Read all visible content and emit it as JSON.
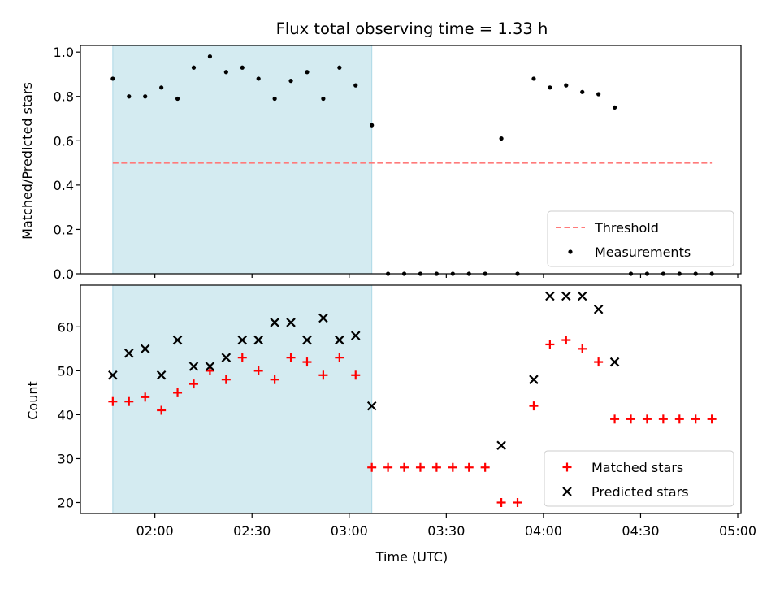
{
  "chart_data": {
    "type": "scatter",
    "title": "Flux total observing time = 1.33 h",
    "xlabel": "Time (UTC)",
    "x_unit": "time of day (UTC)",
    "x_ticks": [
      "02:00",
      "02:30",
      "03:00",
      "03:30",
      "04:00",
      "04:30",
      "05:00"
    ],
    "xlim": [
      "01:37",
      "05:01"
    ],
    "shaded_interval": {
      "start": "01:47",
      "end": "03:07",
      "color": "#d4ebf1"
    },
    "panels": [
      {
        "ylabel": "Matched/Predicted stars",
        "ylim": [
          0,
          1.03
        ],
        "y_ticks": [
          "0.0",
          "0.2",
          "0.4",
          "0.6",
          "0.8",
          "1.0"
        ],
        "legend_position": "lower-right",
        "series": [
          {
            "name": "Threshold",
            "kind": "dashed-line",
            "color": "#ff7a7a",
            "x": [
              "01:47",
              "04:52"
            ],
            "y": [
              0.5,
              0.5
            ]
          },
          {
            "name": "Measurements",
            "kind": "dot",
            "color": "#000000",
            "x": [
              "01:47",
              "01:52",
              "01:57",
              "02:02",
              "02:07",
              "02:12",
              "02:17",
              "02:22",
              "02:27",
              "02:32",
              "02:37",
              "02:42",
              "02:47",
              "02:52",
              "02:57",
              "03:02",
              "03:07",
              "03:12",
              "03:17",
              "03:22",
              "03:27",
              "03:32",
              "03:37",
              "03:42",
              "03:47",
              "03:52",
              "03:57",
              "04:02",
              "04:07",
              "04:12",
              "04:17",
              "04:22",
              "04:27",
              "04:32",
              "04:37",
              "04:42",
              "04:47",
              "04:52"
            ],
            "y": [
              0.88,
              0.8,
              0.8,
              0.84,
              0.79,
              0.93,
              0.98,
              0.91,
              0.93,
              0.88,
              0.79,
              0.87,
              0.91,
              0.79,
              0.93,
              0.85,
              0.67,
              0.0,
              0.0,
              0.0,
              0.0,
              0.0,
              0.0,
              0.0,
              0.61,
              0.0,
              0.88,
              0.84,
              0.85,
              0.82,
              0.81,
              0.75,
              0.0,
              0.0,
              0.0,
              0.0,
              0.0,
              0.0
            ]
          }
        ]
      },
      {
        "ylabel": "Count",
        "ylim": [
          17.5,
          69.5
        ],
        "y_ticks": [
          "20",
          "30",
          "40",
          "50",
          "60"
        ],
        "legend_position": "lower-right",
        "series": [
          {
            "name": "Matched stars",
            "kind": "plus",
            "color": "#ff0000",
            "x": [
              "01:47",
              "01:52",
              "01:57",
              "02:02",
              "02:07",
              "02:12",
              "02:17",
              "02:22",
              "02:27",
              "02:32",
              "02:37",
              "02:42",
              "02:47",
              "02:52",
              "02:57",
              "03:02",
              "03:07",
              "03:12",
              "03:17",
              "03:22",
              "03:27",
              "03:32",
              "03:37",
              "03:42",
              "03:47",
              "03:52",
              "03:57",
              "04:02",
              "04:07",
              "04:12",
              "04:17",
              "04:22",
              "04:27",
              "04:32",
              "04:37",
              "04:42",
              "04:47",
              "04:52"
            ],
            "y": [
              43,
              43,
              44,
              41,
              45,
              47,
              50,
              48,
              53,
              50,
              48,
              53,
              52,
              49,
              53,
              49,
              28,
              28,
              28,
              28,
              28,
              28,
              28,
              28,
              20,
              20,
              42,
              56,
              57,
              55,
              52,
              39,
              39,
              39,
              39,
              39,
              39,
              39
            ]
          },
          {
            "name": "Predicted stars",
            "kind": "x",
            "color": "#000000",
            "x": [
              "01:47",
              "01:52",
              "01:57",
              "02:02",
              "02:07",
              "02:12",
              "02:17",
              "02:22",
              "02:27",
              "02:32",
              "02:37",
              "02:42",
              "02:47",
              "02:52",
              "02:57",
              "03:02",
              "03:07",
              "03:47",
              "03:57",
              "04:02",
              "04:07",
              "04:12",
              "04:17",
              "04:22"
            ],
            "y": [
              49,
              54,
              55,
              49,
              57,
              51,
              51,
              53,
              57,
              57,
              61,
              61,
              57,
              62,
              57,
              58,
              42,
              33,
              48,
              67,
              67,
              67,
              64,
              52
            ]
          }
        ]
      }
    ]
  }
}
